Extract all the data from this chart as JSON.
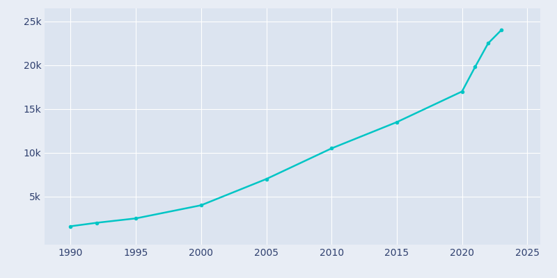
{
  "years": [
    1990,
    1992,
    1995,
    2000,
    2005,
    2010,
    2015,
    2020,
    2021,
    2022,
    2023
  ],
  "population": [
    1600,
    2000,
    2500,
    4000,
    7000,
    10500,
    13500,
    17000,
    19800,
    22500,
    24000
  ],
  "line_color": "#00C5C5",
  "marker": "o",
  "marker_size": 3,
  "line_width": 1.8,
  "background_color": "#E8EDF5",
  "plot_bg_color": "#dce4f0",
  "grid_color": "#ffffff",
  "tick_color": "#2e3f6e",
  "xlim": [
    1988,
    2026
  ],
  "ylim": [
    -500,
    26500
  ],
  "xticks": [
    1990,
    1995,
    2000,
    2005,
    2010,
    2015,
    2020,
    2025
  ],
  "yticks": [
    5000,
    10000,
    15000,
    20000,
    25000
  ]
}
